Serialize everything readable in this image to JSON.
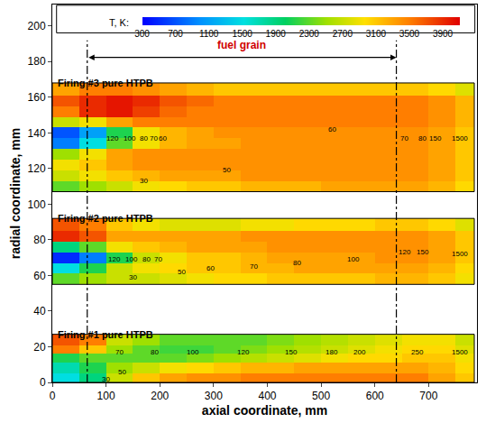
{
  "chart_data": {
    "type": "heatmap",
    "x_label": "axial coordinate, mm",
    "y_label": "radial coordinate, mm",
    "xlim": [
      0,
      790
    ],
    "xticks": [
      0,
      100,
      200,
      300,
      400,
      500,
      600,
      700
    ],
    "ylim": [
      0,
      212
    ],
    "yticks": [
      0,
      20,
      40,
      60,
      80,
      100,
      120,
      140,
      160,
      180,
      200
    ],
    "grid": false,
    "color_title": "T, K:",
    "color_range": [
      300,
      4100
    ],
    "color_ticks": [
      300,
      700,
      1100,
      1500,
      1900,
      2300,
      2700,
      3100,
      3500,
      3900
    ],
    "x_edges": [
      0,
      50,
      100,
      150,
      200,
      250,
      300,
      350,
      400,
      450,
      500,
      550,
      600,
      650,
      700,
      750,
      785
    ],
    "y_edges": [
      0,
      5,
      11,
      16,
      21,
      27,
      55,
      61,
      67,
      73,
      79,
      85,
      92,
      107,
      113,
      119,
      125,
      131,
      137,
      143,
      149,
      155,
      161,
      168
    ],
    "cells": [
      [
        1500,
        1900,
        2700,
        3100,
        3300,
        3400,
        3400,
        3500,
        3500,
        3500,
        3500,
        3500,
        3500,
        3500,
        3300,
        3100
      ],
      [
        1700,
        2100,
        2500,
        2700,
        2900,
        3000,
        3100,
        3200,
        3200,
        3300,
        3300,
        3300,
        3300,
        3300,
        3200,
        3000
      ],
      [
        2100,
        2300,
        2300,
        2300,
        2300,
        2400,
        2500,
        2600,
        2700,
        2800,
        2900,
        3000,
        3000,
        3100,
        3100,
        2900
      ],
      [
        3500,
        3100,
        2500,
        2300,
        2200,
        2200,
        2300,
        2400,
        2500,
        2600,
        2700,
        2800,
        2900,
        3000,
        3000,
        2800
      ],
      [
        3700,
        3500,
        2700,
        2500,
        2300,
        2300,
        2300,
        2300,
        2400,
        2500,
        2600,
        2700,
        2800,
        2900,
        2900,
        2700
      ],
      [
        null,
        null,
        null,
        null,
        null,
        null,
        null,
        null,
        null,
        null,
        null,
        null,
        null,
        null,
        null,
        null
      ],
      [
        2300,
        2500,
        2700,
        2700,
        2800,
        2900,
        3000,
        3000,
        3100,
        3100,
        3100,
        3100,
        3200,
        3200,
        3100,
        2900
      ],
      [
        1500,
        2100,
        2700,
        2900,
        3000,
        3100,
        3100,
        3200,
        3200,
        3300,
        3300,
        3300,
        3300,
        3300,
        3200,
        3000
      ],
      [
        500,
        900,
        2100,
        2700,
        2900,
        3100,
        3100,
        3200,
        3300,
        3300,
        3300,
        3300,
        3400,
        3400,
        3300,
        3100
      ],
      [
        1900,
        2300,
        2900,
        3100,
        3200,
        3300,
        3300,
        3300,
        3400,
        3400,
        3400,
        3400,
        3400,
        3400,
        3300,
        3100
      ],
      [
        3900,
        3700,
        3300,
        3300,
        3300,
        3300,
        3300,
        3400,
        3400,
        3400,
        3400,
        3400,
        3400,
        3400,
        3300,
        3100
      ],
      [
        3700,
        3500,
        3100,
        2900,
        2800,
        2800,
        2800,
        2900,
        2900,
        3000,
        3000,
        3000,
        3100,
        3100,
        3000,
        2800
      ],
      [
        null,
        null,
        null,
        null,
        null,
        null,
        null,
        null,
        null,
        null,
        null,
        null,
        null,
        null,
        null,
        null
      ],
      [
        2300,
        2500,
        2700,
        2900,
        3000,
        3100,
        3100,
        3200,
        3200,
        3200,
        3300,
        3300,
        3300,
        3300,
        3200,
        3000
      ],
      [
        2700,
        2900,
        3100,
        3200,
        3300,
        3300,
        3300,
        3400,
        3400,
        3400,
        3400,
        3400,
        3400,
        3400,
        3300,
        3100
      ],
      [
        2900,
        3100,
        3300,
        3400,
        3400,
        3400,
        3400,
        3400,
        3400,
        3400,
        3400,
        3400,
        3400,
        3400,
        3300,
        3100
      ],
      [
        2500,
        2900,
        3300,
        3400,
        3400,
        3400,
        3400,
        3400,
        3400,
        3400,
        3400,
        3400,
        3400,
        3400,
        3300,
        3100
      ],
      [
        900,
        1500,
        2300,
        2900,
        3200,
        3300,
        3300,
        3400,
        3400,
        3400,
        3400,
        3400,
        3400,
        3400,
        3300,
        3100
      ],
      [
        700,
        1100,
        2100,
        2900,
        3200,
        3300,
        3400,
        3400,
        3400,
        3400,
        3400,
        3400,
        3400,
        3400,
        3300,
        3100
      ],
      [
        2700,
        2900,
        3300,
        3500,
        3500,
        3500,
        3500,
        3500,
        3500,
        3500,
        3500,
        3500,
        3500,
        3500,
        3400,
        3200
      ],
      [
        3500,
        3900,
        4000,
        3800,
        3600,
        3500,
        3500,
        3500,
        3500,
        3500,
        3500,
        3500,
        3500,
        3500,
        3400,
        3200
      ],
      [
        3700,
        3900,
        4000,
        3900,
        3700,
        3600,
        3500,
        3500,
        3500,
        3500,
        3500,
        3500,
        3500,
        3500,
        3400,
        3200
      ],
      [
        3300,
        3500,
        3500,
        3400,
        3300,
        3200,
        3100,
        3100,
        3100,
        3100,
        3100,
        3100,
        3100,
        3100,
        3000,
        2800
      ]
    ],
    "panels": [
      {
        "title": "Firing #1 pure HTPB",
        "ylim": [
          0,
          27
        ]
      },
      {
        "title": "Firing #2 pure HTPB",
        "ylim": [
          55,
          92
        ]
      },
      {
        "title": "Firing #3 pure HTPB",
        "ylim": [
          107,
          168
        ]
      }
    ],
    "fuel_grain": {
      "text": "fuel grain",
      "start": 65,
      "end": 640
    },
    "annotations": [
      {
        "x": 112,
        "y": 137,
        "text": "120"
      },
      {
        "x": 145,
        "y": 137,
        "text": "100"
      },
      {
        "x": 170,
        "y": 137,
        "text": "80"
      },
      {
        "x": 188,
        "y": 137,
        "text": "70"
      },
      {
        "x": 205,
        "y": 137,
        "text": "60"
      },
      {
        "x": 325,
        "y": 119,
        "text": "50"
      },
      {
        "x": 170,
        "y": 113,
        "text": "30"
      },
      {
        "x": 520,
        "y": 142,
        "text": "60"
      },
      {
        "x": 655,
        "y": 137,
        "text": "70"
      },
      {
        "x": 688,
        "y": 137,
        "text": "80"
      },
      {
        "x": 712,
        "y": 137,
        "text": "150"
      },
      {
        "x": 758,
        "y": 137,
        "text": "1500"
      },
      {
        "x": 115,
        "y": 69,
        "text": "120"
      },
      {
        "x": 148,
        "y": 69,
        "text": "100"
      },
      {
        "x": 175,
        "y": 69,
        "text": "80"
      },
      {
        "x": 197,
        "y": 69,
        "text": "70"
      },
      {
        "x": 150,
        "y": 59,
        "text": "30"
      },
      {
        "x": 240,
        "y": 62,
        "text": "50"
      },
      {
        "x": 295,
        "y": 64,
        "text": "60"
      },
      {
        "x": 375,
        "y": 65,
        "text": "70"
      },
      {
        "x": 455,
        "y": 67,
        "text": "80"
      },
      {
        "x": 560,
        "y": 69,
        "text": "100"
      },
      {
        "x": 655,
        "y": 73,
        "text": "120"
      },
      {
        "x": 690,
        "y": 73,
        "text": "150"
      },
      {
        "x": 758,
        "y": 72,
        "text": "1500"
      },
      {
        "x": 100,
        "y": 2,
        "text": "30"
      },
      {
        "x": 130,
        "y": 6,
        "text": "50"
      },
      {
        "x": 125,
        "y": 17,
        "text": "70"
      },
      {
        "x": 190,
        "y": 17,
        "text": "80"
      },
      {
        "x": 262,
        "y": 17,
        "text": "100"
      },
      {
        "x": 355,
        "y": 17,
        "text": "120"
      },
      {
        "x": 445,
        "y": 17,
        "text": "150"
      },
      {
        "x": 520,
        "y": 17,
        "text": "180"
      },
      {
        "x": 572,
        "y": 17,
        "text": "200"
      },
      {
        "x": 680,
        "y": 17,
        "text": "250"
      },
      {
        "x": 758,
        "y": 17,
        "text": "1500"
      }
    ]
  }
}
